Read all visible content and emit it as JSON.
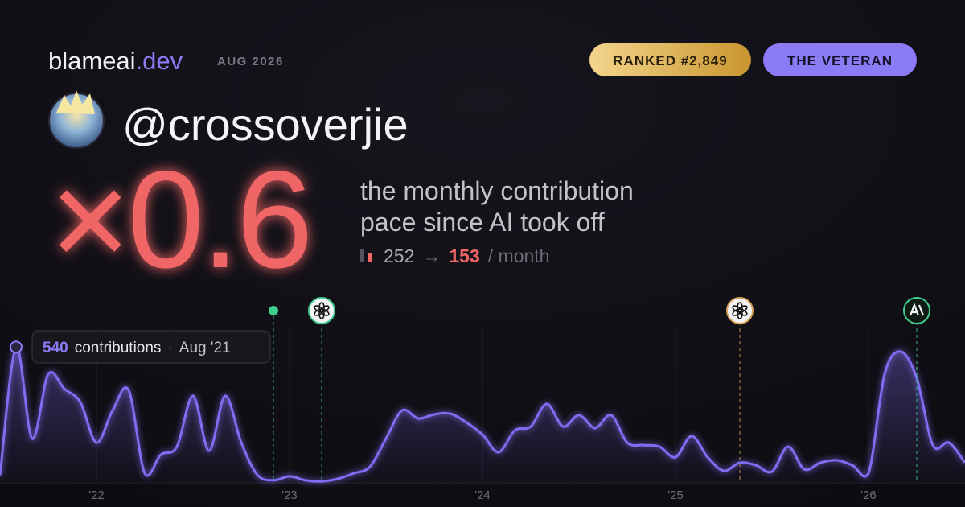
{
  "header": {
    "brand": "blameai",
    "brand_tld": ".dev",
    "date": "AUG 2026",
    "rank_badge": "RANKED #2,849",
    "title_badge": "THE VETERAN"
  },
  "user": {
    "handle": "@crossoverjie"
  },
  "stat": {
    "multiplier": "×0.6",
    "description_line1": "the monthly contribution",
    "description_line2": "pace since AI took off",
    "before": 252,
    "arrow": "→",
    "after": 153,
    "unit": "/ month"
  },
  "tooltip": {
    "label": "contributions",
    "separator": "·",
    "date": "Aug '21",
    "index": 1
  },
  "chart_data": {
    "type": "area",
    "color": "#7f6df2",
    "grid": true,
    "x": [
      "2021-07",
      "2021-08",
      "2021-09",
      "2021-10",
      "2021-11",
      "2021-12",
      "2022-01",
      "2022-02",
      "2022-03",
      "2022-04",
      "2022-05",
      "2022-06",
      "2022-07",
      "2022-08",
      "2022-09",
      "2022-10",
      "2022-11",
      "2022-12",
      "2023-01",
      "2023-02",
      "2023-03",
      "2023-04",
      "2023-05",
      "2023-06",
      "2023-07",
      "2023-08",
      "2023-09",
      "2023-10",
      "2023-11",
      "2023-12",
      "2024-01",
      "2024-02",
      "2024-03",
      "2024-04",
      "2024-05",
      "2024-06",
      "2024-07",
      "2024-08",
      "2024-09",
      "2024-10",
      "2024-11",
      "2024-12",
      "2025-01",
      "2025-02",
      "2025-03",
      "2025-04",
      "2025-05",
      "2025-06",
      "2025-07",
      "2025-08",
      "2025-09",
      "2025-10",
      "2025-11",
      "2025-12",
      "2026-01",
      "2026-02",
      "2026-03",
      "2026-04",
      "2026-05",
      "2026-06",
      "2026-07"
    ],
    "values": [
      30,
      540,
      176,
      432,
      374,
      320,
      160,
      288,
      368,
      38,
      112,
      144,
      346,
      128,
      346,
      160,
      32,
      10,
      26,
      10,
      6,
      16,
      38,
      64,
      176,
      288,
      256,
      272,
      275,
      240,
      192,
      122,
      208,
      224,
      314,
      224,
      269,
      218,
      269,
      160,
      150,
      144,
      102,
      186,
      102,
      48,
      80,
      70,
      45,
      144,
      54,
      80,
      90,
      70,
      38,
      432,
      522,
      416,
      150,
      160,
      80
    ],
    "xlim": [
      "2021-07",
      "2026-07"
    ],
    "ylim": [
      0,
      640
    ],
    "xticks": [
      {
        "value": "2022-01",
        "label": "'22"
      },
      {
        "value": "2023-01",
        "label": "'23"
      },
      {
        "value": "2024-01",
        "label": "'24"
      },
      {
        "value": "2025-01",
        "label": "'25"
      },
      {
        "value": "2026-01",
        "label": "'26"
      }
    ],
    "markers": [
      {
        "x": "2022-12",
        "color": "#3ecf8e"
      },
      {
        "x": "2023-03",
        "color": "#3ecf8e"
      },
      {
        "x": "2025-05",
        "color": "#d9a35a"
      },
      {
        "x": "2026-04",
        "color": "#3ecf8e"
      }
    ]
  }
}
